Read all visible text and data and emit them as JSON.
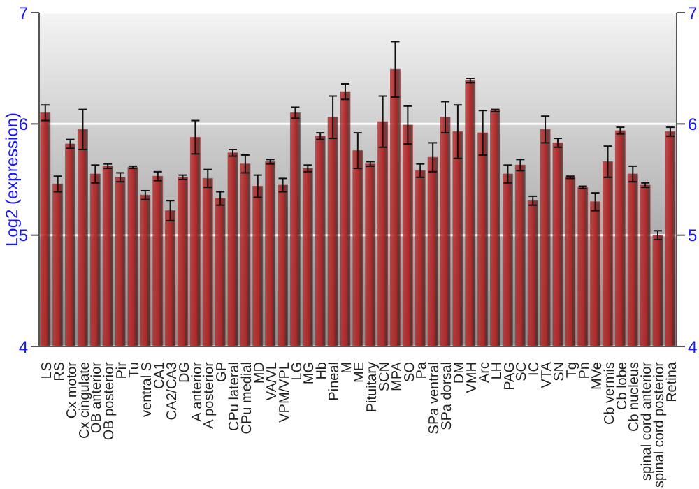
{
  "chart_data": {
    "type": "bar",
    "ylabel": "Log2 (expression)",
    "categories": [
      "LS",
      "RS",
      "Cx motor",
      "Cx cingulate",
      "OB anterior",
      "OB posterior",
      "Pir",
      "Tu",
      "ventral S",
      "CA1",
      "CA2/CA3",
      "DG",
      "A anterior",
      "A posterior",
      "GP",
      "CPu lateral",
      "CPu medial",
      "MD",
      "VA/VL",
      "VPM/VPL",
      "LG",
      "MG",
      "Hb",
      "Pineal",
      "M",
      "ME",
      "Pituitary",
      "SCN",
      "MPA",
      "SO",
      "Pa",
      "SPa ventral",
      "SPa dorsal",
      "DM",
      "VMH",
      "Arc",
      "LH",
      "PAG",
      "SC",
      "IC",
      "VTA",
      "SN",
      "Tg",
      "Pn",
      "MVe",
      "Cb vermis",
      "Cb lobe",
      "Cb nucleus",
      "spinal cord anterior",
      "spinal cord posterior",
      "Retina"
    ],
    "values": [
      6.1,
      5.46,
      5.82,
      5.95,
      5.55,
      5.62,
      5.52,
      5.61,
      5.36,
      5.53,
      5.22,
      5.52,
      5.88,
      5.51,
      5.33,
      5.74,
      5.64,
      5.44,
      5.66,
      5.45,
      6.1,
      5.6,
      5.89,
      6.06,
      6.29,
      5.76,
      5.64,
      6.02,
      6.49,
      5.99,
      5.58,
      5.7,
      6.06,
      5.93,
      6.39,
      5.92,
      6.12,
      5.55,
      5.63,
      5.31,
      5.95,
      5.83,
      5.52,
      5.43,
      5.3,
      5.66,
      5.94,
      5.55,
      5.45,
      5.0,
      5.93
    ],
    "errors": [
      0.07,
      0.07,
      0.04,
      0.18,
      0.08,
      0.02,
      0.04,
      0.01,
      0.04,
      0.04,
      0.09,
      0.02,
      0.15,
      0.08,
      0.06,
      0.03,
      0.08,
      0.1,
      0.02,
      0.06,
      0.05,
      0.03,
      0.03,
      0.19,
      0.07,
      0.16,
      0.02,
      0.23,
      0.25,
      0.17,
      0.06,
      0.13,
      0.14,
      0.24,
      0.02,
      0.2,
      0.01,
      0.08,
      0.05,
      0.04,
      0.12,
      0.04,
      0.01,
      0.01,
      0.08,
      0.14,
      0.03,
      0.07,
      0.02,
      0.04,
      0.04
    ],
    "color": "#b02828",
    "ylim": [
      4,
      7
    ],
    "yticks": [
      4,
      5,
      6,
      7
    ],
    "y2lim": [
      4,
      7
    ],
    "y2ticks": [
      4,
      5,
      6,
      7
    ],
    "grid": "y"
  }
}
